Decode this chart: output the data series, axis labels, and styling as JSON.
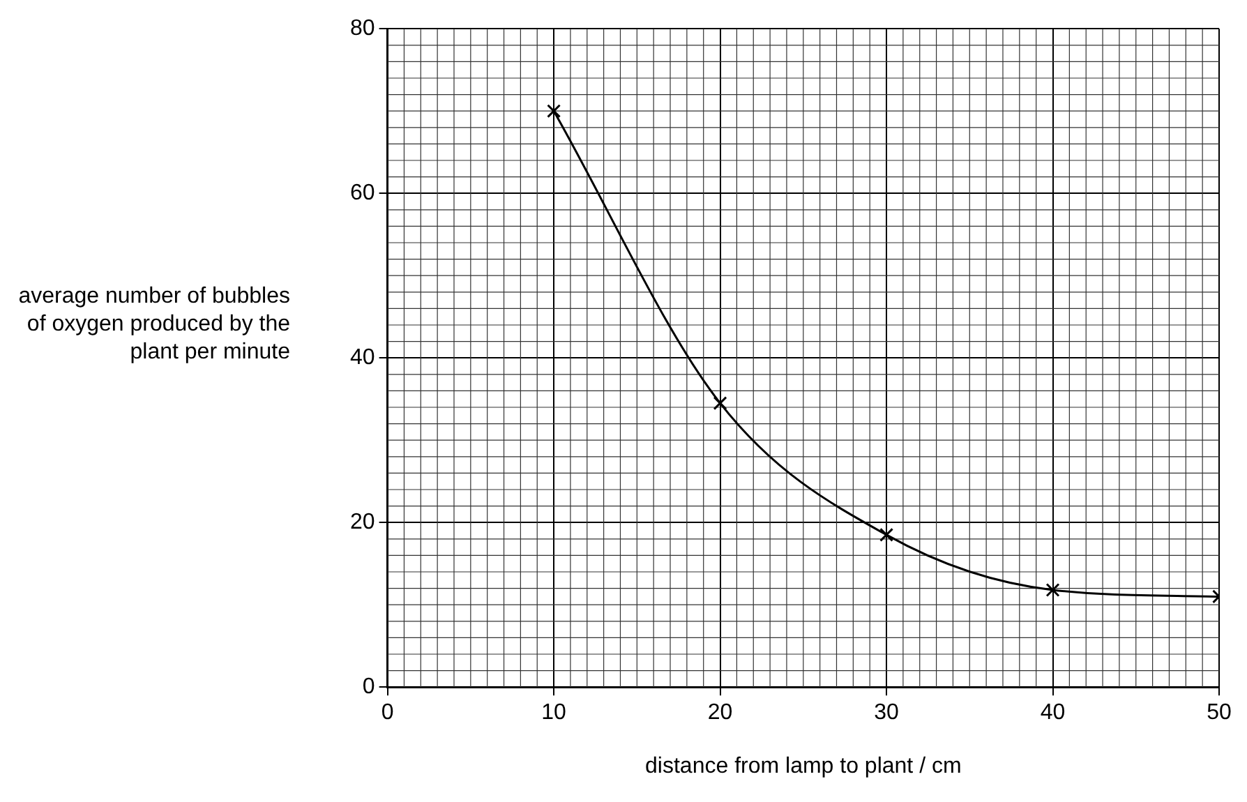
{
  "chart_data": {
    "type": "line",
    "xlabel": "distance from lamp to plant / cm",
    "ylabel": "average number of bubbles of oxygen produced by the plant per minute",
    "x": [
      10,
      20,
      30,
      40,
      50
    ],
    "series": [
      {
        "color": "#000000",
        "values": [
          70,
          34.5,
          18.5,
          11.8,
          11
        ]
      }
    ],
    "xlim": [
      0,
      50
    ],
    "xticks": [
      0,
      10,
      20,
      30,
      40,
      50
    ],
    "ylim": [
      0,
      80
    ],
    "yticks": [
      0,
      20,
      40,
      60,
      80
    ],
    "grid": true,
    "marker": "cross",
    "line_style": "solid",
    "legend": false
  }
}
